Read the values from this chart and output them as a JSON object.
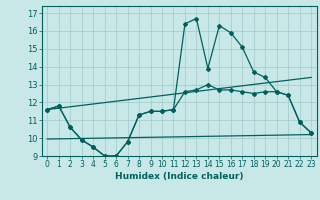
{
  "xlabel": "Humidex (Indice chaleur)",
  "bg_color": "#c8e8e8",
  "grid_color": "#a8cccc",
  "line_color": "#006060",
  "xlim": [
    -0.5,
    23.5
  ],
  "ylim": [
    9,
    17.4
  ],
  "xticks": [
    0,
    1,
    2,
    3,
    4,
    5,
    6,
    7,
    8,
    9,
    10,
    11,
    12,
    13,
    14,
    15,
    16,
    17,
    18,
    19,
    20,
    21,
    22,
    23
  ],
  "yticks": [
    9,
    10,
    11,
    12,
    13,
    14,
    15,
    16,
    17
  ],
  "line1_x": [
    0,
    1,
    2,
    3,
    4,
    5,
    6,
    7,
    8,
    9,
    10,
    11,
    12,
    13,
    14,
    15,
    16,
    17,
    18,
    19,
    20,
    21,
    22,
    23
  ],
  "line1_y": [
    11.6,
    11.8,
    10.6,
    9.9,
    9.5,
    9.0,
    9.0,
    9.8,
    11.3,
    11.5,
    11.5,
    11.6,
    16.4,
    16.7,
    13.9,
    16.3,
    15.9,
    15.1,
    13.7,
    13.4,
    12.6,
    12.4,
    10.9,
    10.3
  ],
  "line2_x": [
    0,
    1,
    2,
    3,
    4,
    5,
    6,
    7,
    8,
    9,
    10,
    11,
    12,
    13,
    14,
    15,
    16,
    17,
    18,
    19,
    20,
    21,
    22,
    23
  ],
  "line2_y": [
    11.6,
    11.8,
    10.6,
    9.9,
    9.5,
    9.0,
    9.0,
    9.8,
    11.3,
    11.5,
    11.5,
    11.6,
    12.6,
    12.7,
    13.0,
    12.7,
    12.7,
    12.6,
    12.5,
    12.6,
    12.6,
    12.4,
    10.9,
    10.3
  ],
  "line3_x": [
    0,
    23
  ],
  "line3_y": [
    11.6,
    13.4
  ],
  "line4_x": [
    0,
    23
  ],
  "line4_y": [
    9.95,
    10.2
  ]
}
